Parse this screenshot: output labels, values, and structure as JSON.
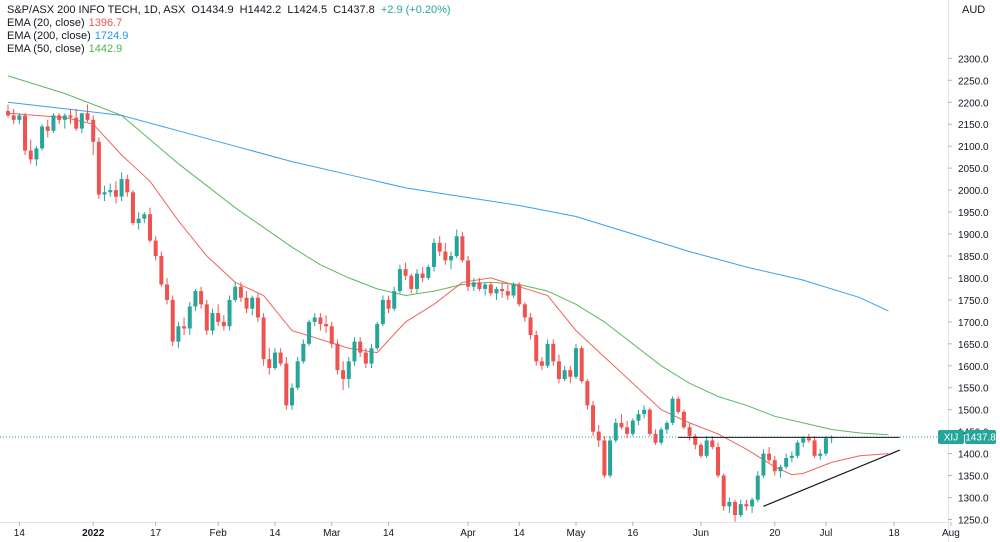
{
  "header": {
    "title": "S&P/ASX 200 INFO TECH, 1D, ASX",
    "o_label": "O",
    "o_value": "1434.9",
    "h_label": "H",
    "h_value": "1442.2",
    "l_label": "L",
    "l_value": "1424.5",
    "c_label": "C",
    "c_value": "1437.8",
    "change": "+2.9 (+0.20%)"
  },
  "indicators": [
    {
      "label": "EMA (20, close)",
      "value": "1396.7",
      "color": "#ef5350"
    },
    {
      "label": "EMA (200, close)",
      "value": "1724.9",
      "color": "#2196f3"
    },
    {
      "label": "EMA (50, close)",
      "value": "1442.9",
      "color": "#4caf50"
    }
  ],
  "price_axis": {
    "unit": "AUD"
  },
  "symbol_tag": {
    "symbol": "XIJ",
    "price": "1437.8"
  },
  "colors": {
    "up": "#26a69a",
    "down": "#ef5350",
    "ema20": "#ef5350",
    "ema200": "#2196f3",
    "ema50": "#4caf50",
    "trendline": "#131722"
  },
  "chart_data": {
    "type": "candlestick",
    "y_ticks": [
      1250,
      1300,
      1350,
      1400,
      1450,
      1500,
      1550,
      1600,
      1650,
      1700,
      1750,
      1800,
      1850,
      1900,
      1950,
      2000,
      2050,
      2100,
      2150,
      2200,
      2250,
      2300
    ],
    "y_tick_labels": [
      "1250.0",
      "1300.0",
      "1350.0",
      "1400.0",
      "1450.0",
      "1500.0",
      "1550.0",
      "1600.0",
      "1650.0",
      "1700.0",
      "1750.0",
      "1800.0",
      "1850.0",
      "1900.0",
      "1950.0",
      "2000.0",
      "2050.0",
      "2100.0",
      "2150.0",
      "2200.0",
      "2250.0",
      "2300.0"
    ],
    "ylim": [
      1200,
      2350
    ],
    "x_ticks": [
      {
        "label": "14",
        "bold": false,
        "bar": 2
      },
      {
        "label": "2022",
        "bold": true,
        "bar": 15
      },
      {
        "label": "17",
        "bold": false,
        "bar": 26
      },
      {
        "label": "Feb",
        "bold": false,
        "bar": 37
      },
      {
        "label": "14",
        "bold": false,
        "bar": 47
      },
      {
        "label": "Mar",
        "bold": false,
        "bar": 57
      },
      {
        "label": "14",
        "bold": false,
        "bar": 67
      },
      {
        "label": "Apr",
        "bold": false,
        "bar": 81
      },
      {
        "label": "14",
        "bold": false,
        "bar": 90
      },
      {
        "label": "May",
        "bold": false,
        "bar": 100
      },
      {
        "label": "16",
        "bold": false,
        "bar": 110
      },
      {
        "label": "Jun",
        "bold": false,
        "bar": 122
      },
      {
        "label": "20",
        "bold": false,
        "bar": 135
      },
      {
        "label": "Jul",
        "bold": false,
        "bar": 144
      },
      {
        "label": "18",
        "bold": false,
        "bar": 156
      },
      {
        "label": "Aug",
        "bold": false,
        "bar": 166
      }
    ],
    "candles": [
      [
        2180,
        2195,
        2165,
        2170
      ],
      [
        2170,
        2185,
        2150,
        2160
      ],
      [
        2160,
        2175,
        2150,
        2170
      ],
      [
        2170,
        2175,
        2080,
        2090
      ],
      [
        2090,
        2115,
        2060,
        2070
      ],
      [
        2070,
        2100,
        2055,
        2095
      ],
      [
        2095,
        2150,
        2090,
        2145
      ],
      [
        2145,
        2160,
        2120,
        2135
      ],
      [
        2135,
        2175,
        2130,
        2170
      ],
      [
        2170,
        2175,
        2150,
        2160
      ],
      [
        2160,
        2175,
        2140,
        2170
      ],
      [
        2170,
        2185,
        2150,
        2165
      ],
      [
        2165,
        2185,
        2135,
        2140
      ],
      [
        2140,
        2175,
        2130,
        2175
      ],
      [
        2175,
        2195,
        2155,
        2160
      ],
      [
        2160,
        2170,
        2080,
        2110
      ],
      [
        2110,
        2120,
        1980,
        1990
      ],
      [
        1990,
        2010,
        1975,
        1995
      ],
      [
        1995,
        2015,
        1985,
        2000
      ],
      [
        2000,
        2020,
        1970,
        1985
      ],
      [
        1985,
        2040,
        1975,
        2025
      ],
      [
        2025,
        2035,
        1985,
        1995
      ],
      [
        1995,
        2000,
        1920,
        1925
      ],
      [
        1925,
        1950,
        1910,
        1935
      ],
      [
        1935,
        1950,
        1925,
        1945
      ],
      [
        1945,
        1960,
        1880,
        1885
      ],
      [
        1885,
        1895,
        1840,
        1850
      ],
      [
        1850,
        1860,
        1780,
        1785
      ],
      [
        1785,
        1800,
        1740,
        1750
      ],
      [
        1750,
        1760,
        1645,
        1655
      ],
      [
        1655,
        1700,
        1640,
        1690
      ],
      [
        1690,
        1710,
        1670,
        1685
      ],
      [
        1685,
        1745,
        1670,
        1735
      ],
      [
        1735,
        1775,
        1725,
        1770
      ],
      [
        1770,
        1780,
        1730,
        1740
      ],
      [
        1740,
        1750,
        1670,
        1680
      ],
      [
        1680,
        1730,
        1670,
        1720
      ],
      [
        1720,
        1740,
        1690,
        1700
      ],
      [
        1700,
        1715,
        1680,
        1690
      ],
      [
        1690,
        1760,
        1680,
        1750
      ],
      [
        1750,
        1790,
        1745,
        1780
      ],
      [
        1780,
        1790,
        1745,
        1755
      ],
      [
        1755,
        1770,
        1720,
        1730
      ],
      [
        1730,
        1760,
        1715,
        1755
      ],
      [
        1755,
        1765,
        1700,
        1710
      ],
      [
        1710,
        1720,
        1600,
        1615
      ],
      [
        1615,
        1640,
        1580,
        1595
      ],
      [
        1595,
        1640,
        1590,
        1630
      ],
      [
        1630,
        1640,
        1600,
        1605
      ],
      [
        1605,
        1620,
        1500,
        1510
      ],
      [
        1510,
        1560,
        1500,
        1550
      ],
      [
        1550,
        1620,
        1545,
        1610
      ],
      [
        1610,
        1660,
        1605,
        1650
      ],
      [
        1650,
        1705,
        1645,
        1700
      ],
      [
        1700,
        1720,
        1690,
        1710
      ],
      [
        1710,
        1720,
        1680,
        1695
      ],
      [
        1695,
        1715,
        1675,
        1690
      ],
      [
        1690,
        1700,
        1640,
        1650
      ],
      [
        1650,
        1660,
        1580,
        1590
      ],
      [
        1590,
        1610,
        1545,
        1570
      ],
      [
        1570,
        1620,
        1550,
        1610
      ],
      [
        1610,
        1665,
        1600,
        1655
      ],
      [
        1655,
        1665,
        1620,
        1630
      ],
      [
        1630,
        1640,
        1595,
        1605
      ],
      [
        1605,
        1650,
        1595,
        1640
      ],
      [
        1640,
        1700,
        1635,
        1695
      ],
      [
        1695,
        1760,
        1690,
        1750
      ],
      [
        1750,
        1760,
        1720,
        1730
      ],
      [
        1730,
        1780,
        1725,
        1770
      ],
      [
        1770,
        1830,
        1765,
        1820
      ],
      [
        1820,
        1835,
        1795,
        1805
      ],
      [
        1805,
        1810,
        1765,
        1775
      ],
      [
        1775,
        1820,
        1765,
        1810
      ],
      [
        1810,
        1825,
        1790,
        1800
      ],
      [
        1800,
        1830,
        1795,
        1825
      ],
      [
        1825,
        1890,
        1815,
        1880
      ],
      [
        1880,
        1895,
        1850,
        1860
      ],
      [
        1860,
        1880,
        1830,
        1840
      ],
      [
        1840,
        1860,
        1820,
        1850
      ],
      [
        1850,
        1910,
        1845,
        1895
      ],
      [
        1895,
        1905,
        1835,
        1840
      ],
      [
        1840,
        1850,
        1770,
        1780
      ],
      [
        1780,
        1800,
        1770,
        1790
      ],
      [
        1790,
        1800,
        1770,
        1775
      ],
      [
        1775,
        1790,
        1760,
        1785
      ],
      [
        1785,
        1790,
        1760,
        1765
      ],
      [
        1765,
        1780,
        1750,
        1775
      ],
      [
        1775,
        1790,
        1755,
        1770
      ],
      [
        1770,
        1785,
        1750,
        1760
      ],
      [
        1760,
        1790,
        1755,
        1785
      ],
      [
        1785,
        1790,
        1735,
        1740
      ],
      [
        1740,
        1745,
        1700,
        1710
      ],
      [
        1710,
        1720,
        1660,
        1670
      ],
      [
        1670,
        1680,
        1600,
        1610
      ],
      [
        1610,
        1620,
        1590,
        1600
      ],
      [
        1600,
        1660,
        1595,
        1650
      ],
      [
        1650,
        1660,
        1600,
        1610
      ],
      [
        1610,
        1625,
        1560,
        1570
      ],
      [
        1570,
        1600,
        1565,
        1590
      ],
      [
        1590,
        1600,
        1560,
        1575
      ],
      [
        1575,
        1650,
        1570,
        1640
      ],
      [
        1640,
        1645,
        1560,
        1565
      ],
      [
        1565,
        1570,
        1500,
        1510
      ],
      [
        1510,
        1520,
        1440,
        1450
      ],
      [
        1450,
        1465,
        1415,
        1430
      ],
      [
        1430,
        1440,
        1345,
        1350
      ],
      [
        1350,
        1440,
        1345,
        1430
      ],
      [
        1430,
        1480,
        1425,
        1470
      ],
      [
        1470,
        1490,
        1455,
        1460
      ],
      [
        1460,
        1475,
        1435,
        1445
      ],
      [
        1445,
        1480,
        1440,
        1475
      ],
      [
        1475,
        1500,
        1465,
        1490
      ],
      [
        1490,
        1510,
        1480,
        1500
      ],
      [
        1500,
        1505,
        1440,
        1445
      ],
      [
        1445,
        1455,
        1420,
        1425
      ],
      [
        1425,
        1460,
        1420,
        1455
      ],
      [
        1455,
        1475,
        1445,
        1470
      ],
      [
        1470,
        1530,
        1465,
        1525
      ],
      [
        1525,
        1530,
        1490,
        1495
      ],
      [
        1495,
        1500,
        1455,
        1460
      ],
      [
        1460,
        1470,
        1430,
        1440
      ],
      [
        1440,
        1445,
        1410,
        1420
      ],
      [
        1420,
        1425,
        1390,
        1395
      ],
      [
        1395,
        1440,
        1390,
        1430
      ],
      [
        1430,
        1440,
        1410,
        1415
      ],
      [
        1415,
        1425,
        1345,
        1350
      ],
      [
        1350,
        1355,
        1270,
        1280
      ],
      [
        1280,
        1300,
        1265,
        1290
      ],
      [
        1290,
        1295,
        1245,
        1260
      ],
      [
        1260,
        1295,
        1255,
        1285
      ],
      [
        1285,
        1295,
        1270,
        1280
      ],
      [
        1280,
        1300,
        1265,
        1295
      ],
      [
        1295,
        1360,
        1290,
        1350
      ],
      [
        1350,
        1410,
        1345,
        1400
      ],
      [
        1400,
        1415,
        1380,
        1385
      ],
      [
        1385,
        1395,
        1350,
        1360
      ],
      [
        1360,
        1375,
        1345,
        1370
      ],
      [
        1370,
        1400,
        1365,
        1390
      ],
      [
        1390,
        1405,
        1380,
        1395
      ],
      [
        1395,
        1430,
        1390,
        1425
      ],
      [
        1425,
        1440,
        1415,
        1435
      ],
      [
        1435,
        1445,
        1425,
        1430
      ],
      [
        1430,
        1440,
        1390,
        1395
      ],
      [
        1395,
        1410,
        1385,
        1400
      ],
      [
        1400,
        1440,
        1395,
        1435
      ],
      [
        1435,
        1442,
        1424,
        1438
      ]
    ],
    "ema20": [
      [
        0,
        2175
      ],
      [
        10,
        2165
      ],
      [
        15,
        2150
      ],
      [
        20,
        2080
      ],
      [
        25,
        2020
      ],
      [
        30,
        1930
      ],
      [
        35,
        1850
      ],
      [
        40,
        1790
      ],
      [
        45,
        1760
      ],
      [
        50,
        1680
      ],
      [
        55,
        1660
      ],
      [
        60,
        1640
      ],
      [
        65,
        1630
      ],
      [
        70,
        1700
      ],
      [
        75,
        1740
      ],
      [
        80,
        1790
      ],
      [
        85,
        1800
      ],
      [
        90,
        1780
      ],
      [
        95,
        1760
      ],
      [
        100,
        1680
      ],
      [
        105,
        1620
      ],
      [
        110,
        1560
      ],
      [
        115,
        1500
      ],
      [
        120,
        1470
      ],
      [
        125,
        1445
      ],
      [
        130,
        1410
      ],
      [
        135,
        1370
      ],
      [
        138,
        1352
      ],
      [
        140,
        1355
      ],
      [
        145,
        1380
      ],
      [
        150,
        1395
      ],
      [
        155,
        1400
      ]
    ],
    "ema50": [
      [
        0,
        2260
      ],
      [
        10,
        2220
      ],
      [
        20,
        2170
      ],
      [
        30,
        2060
      ],
      [
        40,
        1960
      ],
      [
        50,
        1870
      ],
      [
        55,
        1830
      ],
      [
        60,
        1800
      ],
      [
        65,
        1775
      ],
      [
        70,
        1760
      ],
      [
        75,
        1770
      ],
      [
        80,
        1785
      ],
      [
        85,
        1790
      ],
      [
        90,
        1785
      ],
      [
        95,
        1770
      ],
      [
        100,
        1740
      ],
      [
        105,
        1700
      ],
      [
        110,
        1650
      ],
      [
        115,
        1600
      ],
      [
        120,
        1560
      ],
      [
        125,
        1530
      ],
      [
        130,
        1510
      ],
      [
        135,
        1485
      ],
      [
        140,
        1470
      ],
      [
        145,
        1455
      ],
      [
        150,
        1447
      ],
      [
        155,
        1443
      ]
    ],
    "ema200": [
      [
        0,
        2200
      ],
      [
        10,
        2185
      ],
      [
        20,
        2170
      ],
      [
        30,
        2135
      ],
      [
        40,
        2100
      ],
      [
        50,
        2065
      ],
      [
        60,
        2035
      ],
      [
        70,
        2005
      ],
      [
        80,
        1985
      ],
      [
        90,
        1965
      ],
      [
        100,
        1940
      ],
      [
        110,
        1900
      ],
      [
        120,
        1860
      ],
      [
        130,
        1825
      ],
      [
        140,
        1795
      ],
      [
        150,
        1755
      ],
      [
        155,
        1725
      ]
    ],
    "resistance_line": {
      "from_bar": 118,
      "to_bar": 157,
      "value": 1437
    },
    "support_line": [
      [
        133,
        1280
      ],
      [
        157,
        1408
      ]
    ],
    "last_price": 1437.8
  }
}
